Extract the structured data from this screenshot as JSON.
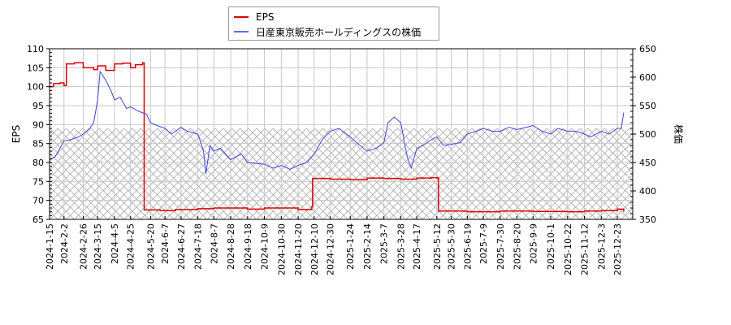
{
  "legend": {
    "items": [
      {
        "label": "EPS",
        "color": "#dd0000"
      },
      {
        "label": "日産東京販売ホールディングスの株価",
        "color": "#4444dd"
      }
    ]
  },
  "axes": {
    "left_title": "EPS",
    "right_title": "株価"
  },
  "chart_data": {
    "type": "line",
    "title": "",
    "xlabel": "",
    "ylabel": "EPS",
    "y2label": "株価",
    "ylim": [
      65,
      110
    ],
    "y2lim": [
      350,
      650
    ],
    "grid": true,
    "legend_position": "top-center",
    "yticks": [
      65,
      70,
      75,
      80,
      85,
      90,
      95,
      100,
      105,
      110
    ],
    "y2ticks": [
      350,
      400,
      450,
      500,
      550,
      600,
      650
    ],
    "x_tick_labels": [
      "2024-1-15",
      "2024-2-2",
      "2024-2-26",
      "2024-3-15",
      "2024-4-5",
      "2024-4-25",
      "2024-5-20",
      "2024-6-7",
      "2024-6-27",
      "2024-7-18",
      "2024-8-7",
      "2024-8-28",
      "2024-9-18",
      "2024-10-9",
      "2024-10-30",
      "2024-11-20",
      "2024-12-10",
      "2024-12-30",
      "2025-1-24",
      "2025-2-14",
      "2025-3-7",
      "2025-3-28",
      "2025-4-17",
      "2025-5-12",
      "2025-5-30",
      "2025-6-19",
      "2025-7-9",
      "2025-7-30",
      "2025-8-20",
      "2025-9-9",
      "2025-10-1",
      "2025-10-22",
      "2025-11-12",
      "2025-12-3",
      "2025-12-23"
    ],
    "hatched_region": {
      "eps_from": 65,
      "eps_to": 89
    },
    "series": [
      {
        "name": "EPS",
        "axis": "left",
        "color": "#dd0000",
        "points": [
          [
            "2024-1-15",
            100.0
          ],
          [
            "2024-1-20",
            100.8
          ],
          [
            "2024-1-28",
            101.0
          ],
          [
            "2024-2-2",
            100.3
          ],
          [
            "2024-2-5",
            106.0
          ],
          [
            "2024-2-15",
            106.3
          ],
          [
            "2024-2-26",
            105.0
          ],
          [
            "2024-3-10",
            104.5
          ],
          [
            "2024-3-15",
            105.5
          ],
          [
            "2024-3-25",
            104.3
          ],
          [
            "2024-4-5",
            106.0
          ],
          [
            "2024-4-15",
            106.2
          ],
          [
            "2024-4-25",
            105.0
          ],
          [
            "2024-5-1",
            105.8
          ],
          [
            "2024-5-10",
            106.3
          ],
          [
            "2024-5-12",
            67.5
          ],
          [
            "2024-6-1",
            67.3
          ],
          [
            "2024-6-20",
            67.6
          ],
          [
            "2024-7-18",
            67.8
          ],
          [
            "2024-8-7",
            68.0
          ],
          [
            "2024-9-18",
            67.7
          ],
          [
            "2024-10-9",
            68.0
          ],
          [
            "2024-11-20",
            67.6
          ],
          [
            "2024-12-7",
            68.3
          ],
          [
            "2024-12-8",
            75.8
          ],
          [
            "2024-12-30",
            75.6
          ],
          [
            "2025-1-24",
            75.5
          ],
          [
            "2025-2-14",
            75.9
          ],
          [
            "2025-3-7",
            75.8
          ],
          [
            "2025-3-28",
            75.6
          ],
          [
            "2025-4-17",
            75.9
          ],
          [
            "2025-5-5",
            76.0
          ],
          [
            "2025-5-12",
            75.9
          ],
          [
            "2025-5-14",
            67.2
          ],
          [
            "2025-6-19",
            67.0
          ],
          [
            "2025-7-30",
            67.2
          ],
          [
            "2025-9-9",
            67.1
          ],
          [
            "2025-10-22",
            67.0
          ],
          [
            "2025-11-12",
            67.2
          ],
          [
            "2025-12-3",
            67.3
          ],
          [
            "2025-12-23",
            67.7
          ],
          [
            "2025-12-31",
            67.0
          ]
        ]
      },
      {
        "name": "日産東京販売ホールディングスの株価",
        "axis": "right",
        "color": "#4444dd",
        "points": [
          [
            "2024-1-15",
            455
          ],
          [
            "2024-1-22",
            460
          ],
          [
            "2024-2-2",
            488
          ],
          [
            "2024-2-10",
            490
          ],
          [
            "2024-2-20",
            495
          ],
          [
            "2024-2-26",
            500
          ],
          [
            "2024-3-5",
            510
          ],
          [
            "2024-3-10",
            520
          ],
          [
            "2024-3-15",
            560
          ],
          [
            "2024-3-18",
            610
          ],
          [
            "2024-3-25",
            595
          ],
          [
            "2024-4-1",
            575
          ],
          [
            "2024-4-5",
            560
          ],
          [
            "2024-4-12",
            565
          ],
          [
            "2024-4-20",
            545
          ],
          [
            "2024-4-25",
            548
          ],
          [
            "2024-5-5",
            540
          ],
          [
            "2024-5-15",
            535
          ],
          [
            "2024-5-20",
            520
          ],
          [
            "2024-5-28",
            515
          ],
          [
            "2024-6-7",
            510
          ],
          [
            "2024-6-15",
            500
          ],
          [
            "2024-6-27",
            512
          ],
          [
            "2024-7-5",
            505
          ],
          [
            "2024-7-18",
            500
          ],
          [
            "2024-7-25",
            470
          ],
          [
            "2024-7-28",
            430
          ],
          [
            "2024-8-2",
            480
          ],
          [
            "2024-8-7",
            470
          ],
          [
            "2024-8-15",
            475
          ],
          [
            "2024-8-28",
            455
          ],
          [
            "2024-9-10",
            465
          ],
          [
            "2024-9-18",
            450
          ],
          [
            "2024-10-1",
            448
          ],
          [
            "2024-10-9",
            447
          ],
          [
            "2024-10-20",
            440
          ],
          [
            "2024-10-30",
            445
          ],
          [
            "2024-11-10",
            438
          ],
          [
            "2024-11-20",
            445
          ],
          [
            "2024-12-1",
            450
          ],
          [
            "2024-12-10",
            465
          ],
          [
            "2024-12-20",
            490
          ],
          [
            "2024-12-30",
            505
          ],
          [
            "2025-1-10",
            510
          ],
          [
            "2025-1-24",
            495
          ],
          [
            "2025-2-5",
            480
          ],
          [
            "2025-2-14",
            470
          ],
          [
            "2025-2-25",
            475
          ],
          [
            "2025-3-7",
            485
          ],
          [
            "2025-3-12",
            520
          ],
          [
            "2025-3-20",
            530
          ],
          [
            "2025-3-28",
            520
          ],
          [
            "2025-4-5",
            460
          ],
          [
            "2025-4-10",
            440
          ],
          [
            "2025-4-17",
            475
          ],
          [
            "2025-4-25",
            480
          ],
          [
            "2025-5-5",
            490
          ],
          [
            "2025-5-12",
            495
          ],
          [
            "2025-5-20",
            480
          ],
          [
            "2025-5-30",
            482
          ],
          [
            "2025-6-10",
            485
          ],
          [
            "2025-6-19",
            500
          ],
          [
            "2025-6-30",
            505
          ],
          [
            "2025-7-9",
            510
          ],
          [
            "2025-7-20",
            505
          ],
          [
            "2025-7-30",
            505
          ],
          [
            "2025-8-10",
            512
          ],
          [
            "2025-8-20",
            508
          ],
          [
            "2025-9-1",
            512
          ],
          [
            "2025-9-9",
            515
          ],
          [
            "2025-9-20",
            505
          ],
          [
            "2025-10-1",
            500
          ],
          [
            "2025-10-10",
            510
          ],
          [
            "2025-10-22",
            505
          ],
          [
            "2025-11-1",
            505
          ],
          [
            "2025-11-12",
            500
          ],
          [
            "2025-11-20",
            495
          ],
          [
            "2025-12-3",
            505
          ],
          [
            "2025-12-13",
            500
          ],
          [
            "2025-12-23",
            510
          ],
          [
            "2025-12-28",
            510
          ],
          [
            "2025-12-31",
            538
          ]
        ]
      }
    ]
  }
}
